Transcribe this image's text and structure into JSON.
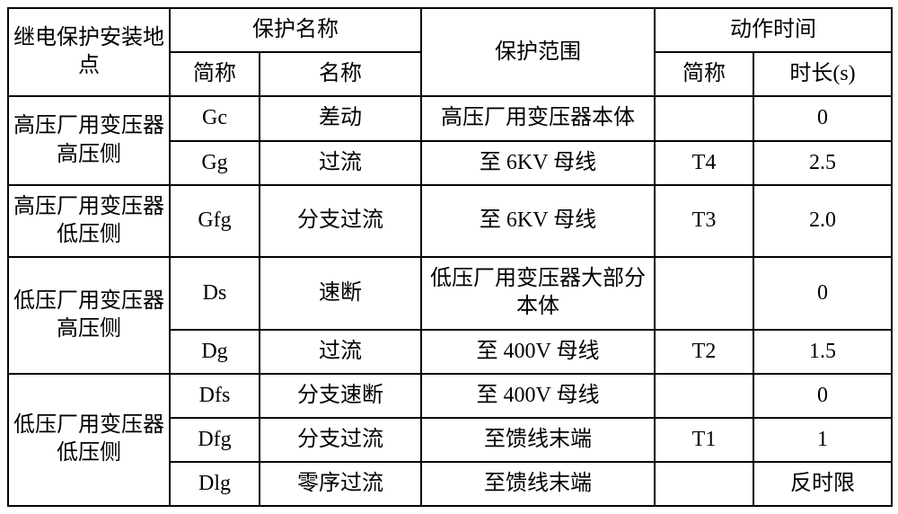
{
  "header": {
    "location": "继电保护安装地点",
    "protection_name": "保护名称",
    "protection_abbr": "简称",
    "protection_full": "名称",
    "scope": "保护范围",
    "action_time": "动作时间",
    "time_abbr": "简称",
    "time_duration": "时长(s)"
  },
  "rows": [
    {
      "location": "高压厂用变压器高压侧",
      "abbr": "Gc",
      "name": "差动",
      "scope": "高压厂用变压器本体",
      "time_abbr": "",
      "duration": "0"
    },
    {
      "location": "",
      "abbr": "Gg",
      "name": "过流",
      "scope": "至 6KV 母线",
      "time_abbr": "T4",
      "duration": "2.5"
    },
    {
      "location": "高压厂用变压器低压侧",
      "abbr": "Gfg",
      "name": "分支过流",
      "scope": "至 6KV 母线",
      "time_abbr": "T3",
      "duration": "2.0"
    },
    {
      "location": "低压厂用变压器高压侧",
      "abbr": "Ds",
      "name": "速断",
      "scope": "低压厂用变压器大部分本体",
      "time_abbr": "",
      "duration": "0"
    },
    {
      "location": "",
      "abbr": "Dg",
      "name": "过流",
      "scope": "至 400V 母线",
      "time_abbr": "T2",
      "duration": "1.5"
    },
    {
      "location": "低压厂用变压器低压侧",
      "abbr": "Dfs",
      "name": "分支速断",
      "scope": "至 400V 母线",
      "time_abbr": "",
      "duration": "0"
    },
    {
      "location": "",
      "abbr": "Dfg",
      "name": "分支过流",
      "scope": "至馈线末端",
      "time_abbr": "T1",
      "duration": "1"
    },
    {
      "location": "",
      "abbr": "Dlg",
      "name": "零序过流",
      "scope": "至馈线末端",
      "time_abbr": "",
      "duration": "反时限"
    }
  ]
}
